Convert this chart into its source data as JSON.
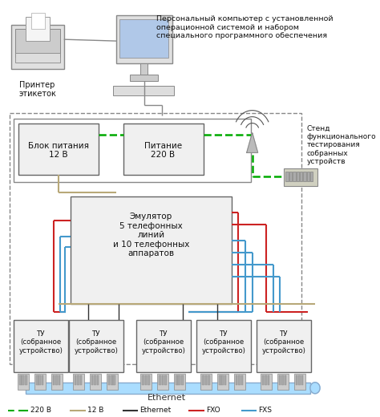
{
  "bg_color": "#ffffff",
  "pc_text": "Персональный компьютер с установленной\nоперационной системой и набором\nспециального программного обеспечения",
  "printer_label": "Принтер\nэтикеток",
  "power_block_label": "Блок питания\n12 В",
  "power_220_label": "Питание\n220 В",
  "stand_label": "Стенд\nфункционального\nтестирования\nсобранных\nустройств",
  "emulator_label": "Эмулятор\n5 телефонных\nлиний\nи 10 телефонных\nаппаратов",
  "tu_label": "ТУ\n(собранное\nустройство)",
  "ethernet_label": "Ethernet",
  "legend_220v": "220 В",
  "legend_12v": "12 В",
  "legend_eth": "Ethernet",
  "legend_fxo": "FXO",
  "legend_fxs": "FXS",
  "color_220v": "#00aa00",
  "color_12v": "#b8a878",
  "color_eth_line": "#333333",
  "color_fxo": "#cc2222",
  "color_fxs": "#4499cc",
  "color_eth_bar": "#aaddff",
  "box_fill": "#f0f0f0",
  "box_edge": "#666666"
}
